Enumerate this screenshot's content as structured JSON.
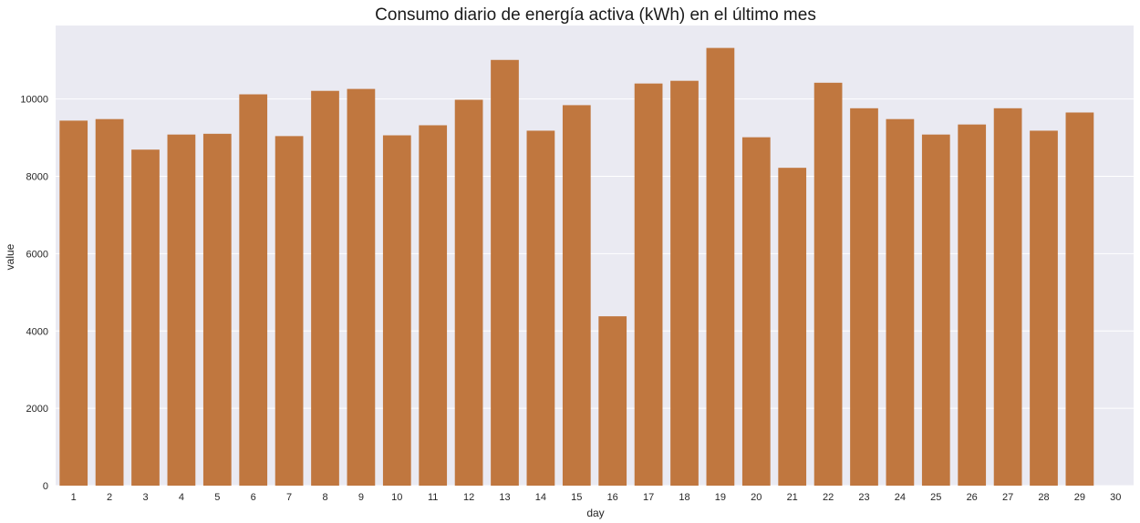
{
  "chart_data": {
    "type": "bar",
    "title": "Consumo diario de energía activa (kWh) en el último mes",
    "xlabel": "day",
    "ylabel": "value",
    "categories": [
      "1",
      "2",
      "3",
      "4",
      "5",
      "6",
      "7",
      "8",
      "9",
      "10",
      "11",
      "12",
      "13",
      "14",
      "15",
      "16",
      "17",
      "18",
      "19",
      "20",
      "21",
      "22",
      "23",
      "24",
      "25",
      "26",
      "27",
      "28",
      "29",
      "30"
    ],
    "values": [
      9440,
      9480,
      8690,
      9080,
      9100,
      10120,
      9040,
      10210,
      10260,
      9060,
      9320,
      9980,
      11010,
      9180,
      9840,
      4380,
      10400,
      10470,
      11320,
      9010,
      8220,
      10420,
      9760,
      9480,
      9080,
      9340,
      9760,
      9180,
      9650,
      null
    ],
    "ylim": [
      0,
      11900
    ],
    "yticks": [
      0,
      2000,
      4000,
      6000,
      8000,
      10000
    ],
    "grid": true,
    "bar_color": "#c0773f",
    "background_color": "#eaeaf2",
    "grid_color": "#ffffff"
  }
}
